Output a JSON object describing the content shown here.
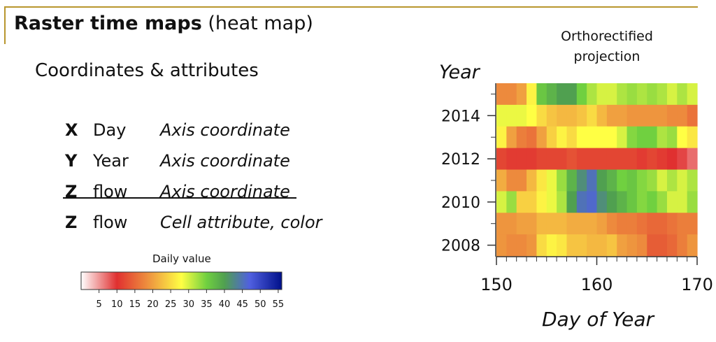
{
  "slide": {
    "title_bold": "Raster time maps",
    "title_rest": "(heat map)",
    "subtitle": "Coordinates & attributes",
    "rows": [
      {
        "var": "X",
        "name": "Day",
        "desc": "Axis coordinate",
        "struck": false
      },
      {
        "var": "Y",
        "name": "Year",
        "desc": "Axis coordinate",
        "struck": false
      },
      {
        "var": "Z",
        "name": "flow",
        "desc": "Axis coordinate",
        "struck": true
      },
      {
        "var": "Z",
        "name": "flow",
        "desc": "Cell attribute, color",
        "struck": false
      }
    ]
  },
  "colorbar": {
    "title": "Daily value",
    "ticks": [
      5,
      10,
      15,
      20,
      25,
      30,
      35,
      40,
      45,
      50,
      55
    ],
    "range": [
      0,
      56
    ],
    "stops": [
      {
        "v": 0,
        "c": "#ffffff"
      },
      {
        "v": 10,
        "c": "#e03030"
      },
      {
        "v": 20,
        "c": "#f0a040"
      },
      {
        "v": 28,
        "c": "#ffff44"
      },
      {
        "v": 35,
        "c": "#70d040"
      },
      {
        "v": 40,
        "c": "#50a050"
      },
      {
        "v": 47,
        "c": "#5060e0"
      },
      {
        "v": 56,
        "c": "#00108a"
      }
    ]
  },
  "chart_data": {
    "type": "heatmap",
    "title": "Orthorectified projection",
    "title_lines": [
      "Orthorectified",
      "projection"
    ],
    "xlabel": "Day of Year",
    "ylabel": "Year",
    "xlim": [
      150,
      170
    ],
    "x_ticks": [
      150,
      160,
      170
    ],
    "y_ticks": [
      2008,
      2010,
      2012,
      2014
    ],
    "x": [
      150,
      151,
      152,
      153,
      154,
      155,
      156,
      157,
      158,
      159,
      160,
      161,
      162,
      163,
      164,
      165,
      166,
      167,
      168,
      169
    ],
    "y": [
      2015,
      2014,
      2013,
      2012,
      2011,
      2010,
      2009,
      2008
    ],
    "values": [
      [
        18,
        18,
        20,
        27,
        36,
        38,
        40,
        40,
        35,
        32,
        30,
        30,
        32,
        33,
        32,
        33,
        32,
        30,
        32,
        30
      ],
      [
        29,
        29,
        29,
        28,
        25,
        23,
        22,
        22,
        23,
        25,
        22,
        20,
        20,
        19,
        19,
        19,
        19,
        18,
        18,
        16
      ],
      [
        27,
        20,
        17,
        16,
        20,
        24,
        27,
        25,
        28,
        28,
        28,
        28,
        30,
        34,
        35,
        35,
        32,
        33,
        28,
        26
      ],
      [
        12,
        11,
        11,
        11,
        12,
        12,
        12,
        13,
        12,
        12,
        12,
        12,
        12,
        12,
        11,
        12,
        11,
        10,
        9,
        7
      ],
      [
        21,
        18,
        18,
        22,
        26,
        29,
        33,
        38,
        42,
        45,
        40,
        38,
        35,
        36,
        34,
        33,
        30,
        32,
        30,
        32
      ],
      [
        30,
        33,
        24,
        24,
        27,
        29,
        32,
        40,
        45,
        46,
        42,
        40,
        38,
        36,
        34,
        35,
        33,
        30,
        30,
        33
      ],
      [
        19,
        19,
        20,
        20,
        22,
        22,
        22,
        21,
        21,
        21,
        20,
        18,
        17,
        17,
        16,
        15,
        15,
        16,
        17,
        17
      ],
      [
        19,
        18,
        18,
        19,
        25,
        27,
        26,
        23,
        23,
        22,
        22,
        23,
        20,
        19,
        18,
        14,
        14,
        15,
        17,
        19
      ]
    ]
  }
}
